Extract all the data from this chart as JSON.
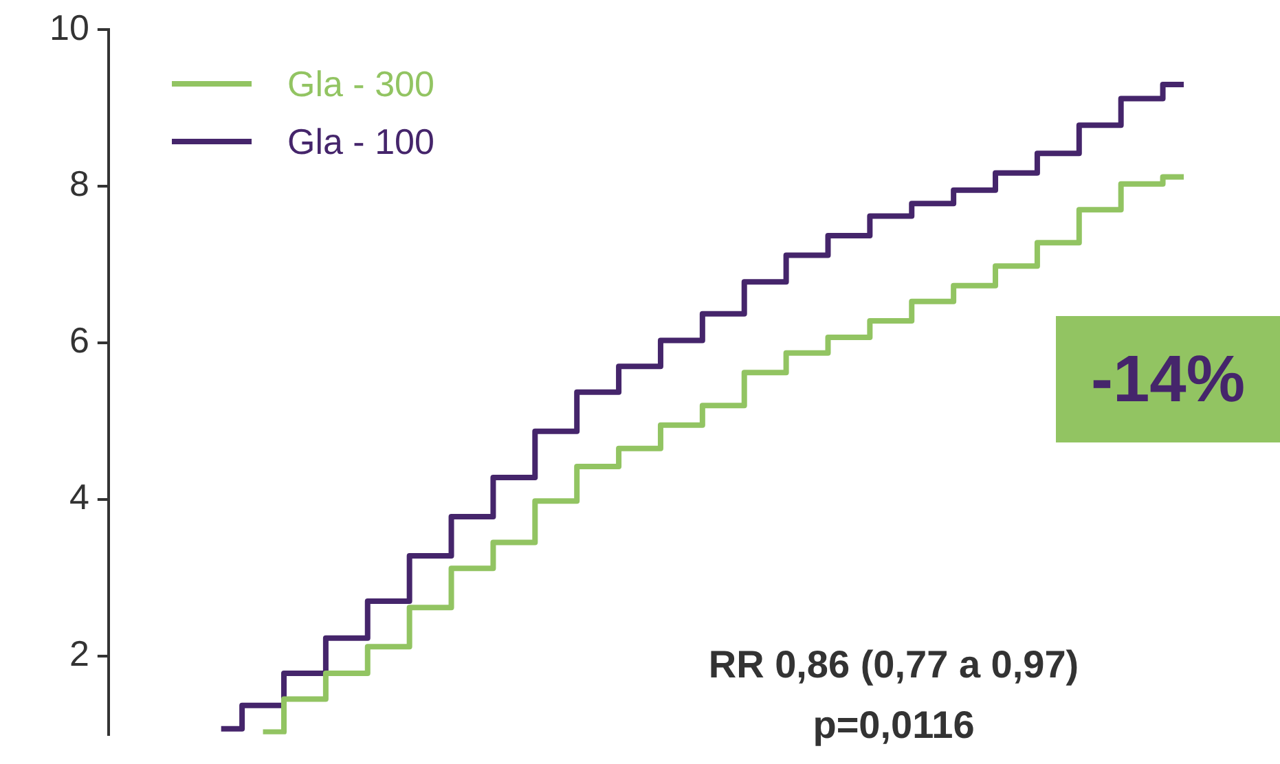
{
  "chart_data": {
    "type": "step",
    "categories": [
      null,
      null,
      null,
      null,
      null,
      null,
      null,
      null,
      null,
      null,
      null,
      null,
      null,
      null,
      null,
      null,
      null,
      null,
      null,
      null,
      null,
      null,
      null,
      null
    ],
    "series": [
      {
        "name": "Gla - 300",
        "color": "#92c462",
        "values": [
          null,
          1.03,
          1.45,
          1.78,
          2.12,
          2.62,
          3.12,
          3.45,
          3.98,
          4.42,
          4.65,
          4.95,
          5.2,
          5.62,
          5.87,
          6.07,
          6.28,
          6.53,
          6.73,
          6.98,
          7.28,
          7.7,
          8.03,
          8.12
        ]
      },
      {
        "name": "Gla - 100",
        "color": "#45256b",
        "values": [
          1.07,
          1.37,
          1.78,
          2.23,
          2.7,
          3.28,
          3.78,
          4.28,
          4.87,
          5.37,
          5.7,
          6.03,
          6.37,
          6.78,
          7.12,
          7.37,
          7.62,
          7.78,
          7.95,
          8.17,
          8.42,
          8.78,
          9.12,
          9.3
        ]
      }
    ],
    "ylim": [
      1,
      10
    ],
    "yticks": [
      2,
      4,
      6,
      8,
      10
    ],
    "grid": false,
    "legend": "top left",
    "tick_labels": "y",
    "line_style": "solid",
    "marker": "none",
    "annotations": [
      "-14%",
      "RR 0,86 (0,77 a 0,97)",
      "p=0,0116"
    ]
  }
}
